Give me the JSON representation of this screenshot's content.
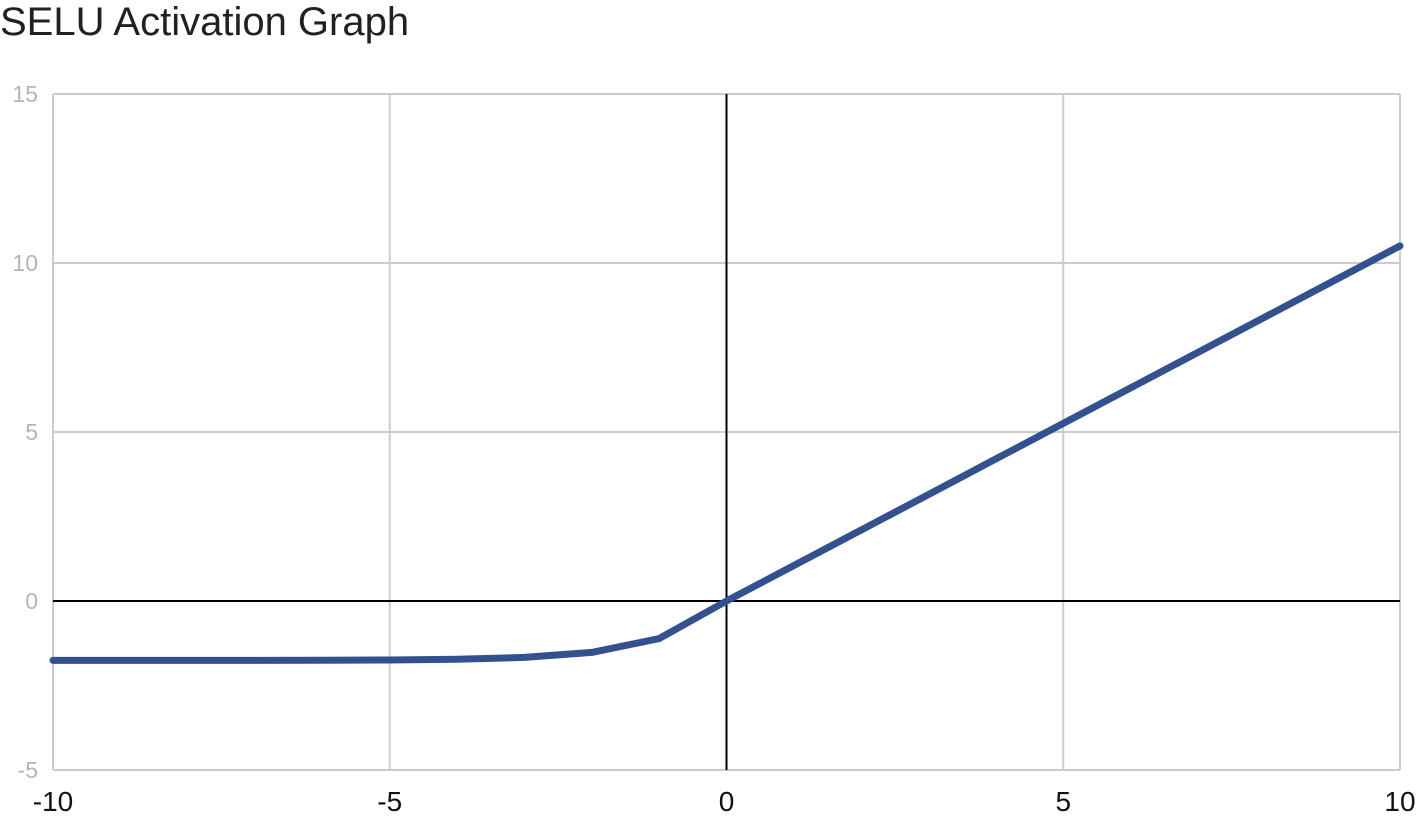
{
  "chart_data": {
    "type": "line",
    "title": "SELU Activation Graph",
    "xlabel": "",
    "ylabel": "",
    "xlim": [
      -10,
      10
    ],
    "ylim": [
      -5,
      15
    ],
    "x_ticks": [
      "-10",
      "-5",
      "0",
      "5",
      "10"
    ],
    "y_ticks": [
      "15",
      "10",
      "5",
      "0",
      "-5"
    ],
    "x_tick_values": [
      -10,
      -5,
      0,
      5,
      10
    ],
    "y_tick_values": [
      15,
      10,
      5,
      0,
      -5
    ],
    "grid": true,
    "legend": "none",
    "series": [
      {
        "color": "#34518f",
        "x": [
          -10,
          -9,
          -8,
          -7,
          -6,
          -5,
          -4,
          -3,
          -2,
          -1,
          0,
          1,
          2,
          3,
          4,
          5,
          6,
          7,
          8,
          9,
          10
        ],
        "y": [
          -1.758,
          -1.758,
          -1.757,
          -1.756,
          -1.754,
          -1.746,
          -1.726,
          -1.67,
          -1.52,
          -1.111,
          0,
          1.051,
          2.101,
          3.152,
          4.203,
          5.254,
          6.304,
          7.355,
          8.406,
          9.456,
          10.507
        ]
      }
    ]
  }
}
